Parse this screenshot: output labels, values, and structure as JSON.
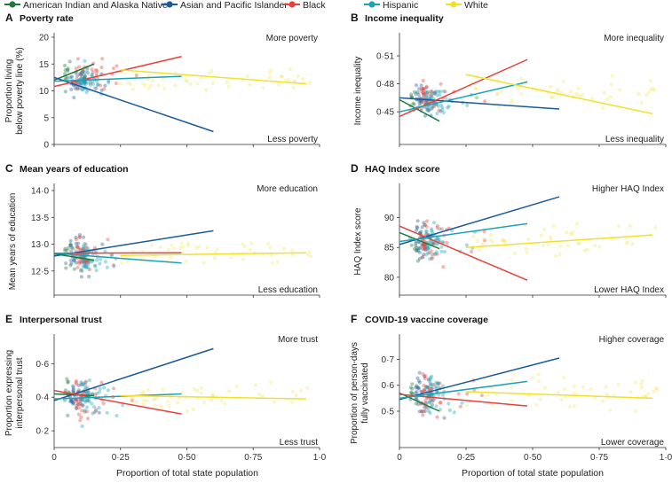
{
  "legend": [
    {
      "name": "American Indian and Alaska Native",
      "color": "#1e7a3c"
    },
    {
      "name": "Asian and Pacific Islander",
      "color": "#1a5a9a"
    },
    {
      "name": "Black",
      "color": "#e8413a"
    },
    {
      "name": "Hispanic",
      "color": "#1aa3b8"
    },
    {
      "name": "White",
      "color": "#f2e030"
    }
  ],
  "x_axis_title": "Proportion of total state population",
  "chart_data": [
    {
      "type": "scatter",
      "letter": "A",
      "title": "Poverty rate",
      "ylabel": [
        "Proportion living",
        "below poverty line (%)"
      ],
      "xlim": [
        0,
        1.0
      ],
      "ylim": [
        0,
        20
      ],
      "xticks": [
        0,
        0.25,
        0.5,
        0.75,
        1.0
      ],
      "xtick_labels": [
        "0",
        "0·25",
        "0·50",
        "0·75",
        "1·0"
      ],
      "yticks": [
        0,
        5,
        10,
        15,
        20
      ],
      "ytick_labels": [
        "0",
        "5",
        "10",
        "15",
        "20"
      ],
      "show_xticks": false,
      "annotation_top": "More poverty",
      "annotation_bottom": "Less poverty",
      "series": [
        {
          "name": "American Indian and Alaska Native",
          "line": [
            [
              0,
              12.0
            ],
            [
              0.15,
              15.0
            ]
          ],
          "center": [
            0.04,
            13.5
          ],
          "spread": [
            0.05,
            3.8
          ],
          "n": 12
        },
        {
          "name": "Asian and Pacific Islander",
          "line": [
            [
              0,
              12.5
            ],
            [
              0.6,
              2.4
            ]
          ],
          "center": [
            0.06,
            11.5
          ],
          "spread": [
            0.08,
            3.5
          ],
          "n": 30
        },
        {
          "name": "Black",
          "line": [
            [
              0,
              10.8
            ],
            [
              0.48,
              16.4
            ]
          ],
          "center": [
            0.08,
            13.0
          ],
          "spread": [
            0.12,
            3.5
          ],
          "n": 45
        },
        {
          "name": "Hispanic",
          "line": [
            [
              0,
              11.8
            ],
            [
              0.48,
              12.7
            ]
          ],
          "center": [
            0.1,
            12.0
          ],
          "spread": [
            0.1,
            3.5
          ],
          "n": 48
        },
        {
          "name": "White",
          "line": [
            [
              0.25,
              13.9
            ],
            [
              0.95,
              11.3
            ]
          ],
          "center": [
            0.65,
            12.0
          ],
          "spread": [
            0.2,
            3.0
          ],
          "n": 50
        }
      ]
    },
    {
      "type": "scatter",
      "letter": "B",
      "title": "Income inequality",
      "ylabel": [
        "Income inequality"
      ],
      "xlim": [
        0,
        1.0
      ],
      "ylim": [
        0.415,
        0.53
      ],
      "xticks": [
        0,
        0.25,
        0.5,
        0.75,
        1.0
      ],
      "xtick_labels": [
        "0",
        "0·25",
        "0·50",
        "0·75",
        "1·0"
      ],
      "yticks": [
        0.45,
        0.48,
        0.51
      ],
      "ytick_labels": [
        "0·45",
        "0·48",
        "0·51"
      ],
      "show_xticks": false,
      "annotation_top": "More inequality",
      "annotation_bottom": "Less inequality",
      "series": [
        {
          "name": "American Indian and Alaska Native",
          "line": [
            [
              0,
              0.463
            ],
            [
              0.15,
              0.44
            ]
          ],
          "center": [
            0.04,
            0.46
          ],
          "spread": [
            0.05,
            0.02
          ],
          "n": 12
        },
        {
          "name": "Asian and Pacific Islander",
          "line": [
            [
              0,
              0.465
            ],
            [
              0.6,
              0.453
            ]
          ],
          "center": [
            0.06,
            0.46
          ],
          "spread": [
            0.08,
            0.02
          ],
          "n": 30
        },
        {
          "name": "Black",
          "line": [
            [
              0,
              0.445
            ],
            [
              0.48,
              0.506
            ]
          ],
          "center": [
            0.08,
            0.465
          ],
          "spread": [
            0.12,
            0.02
          ],
          "n": 45
        },
        {
          "name": "Hispanic",
          "line": [
            [
              0,
              0.45
            ],
            [
              0.48,
              0.482
            ]
          ],
          "center": [
            0.1,
            0.462
          ],
          "spread": [
            0.1,
            0.02
          ],
          "n": 48
        },
        {
          "name": "White",
          "line": [
            [
              0.25,
              0.49
            ],
            [
              0.95,
              0.448
            ]
          ],
          "center": [
            0.6,
            0.47
          ],
          "spread": [
            0.2,
            0.022
          ],
          "n": 50
        }
      ]
    },
    {
      "type": "scatter",
      "letter": "C",
      "title": "Mean years of education",
      "ylabel": [
        "Mean years of education"
      ],
      "xlim": [
        0,
        1.0
      ],
      "ylim": [
        12.05,
        14.05
      ],
      "xticks": [
        0,
        0.25,
        0.5,
        0.75,
        1.0
      ],
      "xtick_labels": [
        "0",
        "0·25",
        "0·50",
        "0·75",
        "1·0"
      ],
      "yticks": [
        12.5,
        13.0,
        13.5,
        14.0
      ],
      "ytick_labels": [
        "12·5",
        "13·0",
        "13·5",
        "14·0"
      ],
      "show_xticks": false,
      "annotation_top": "More education",
      "annotation_bottom": "Less education",
      "series": [
        {
          "name": "American Indian and Alaska Native",
          "line": [
            [
              0,
              12.82
            ],
            [
              0.15,
              12.7
            ]
          ],
          "center": [
            0.04,
            12.8
          ],
          "spread": [
            0.05,
            0.4
          ],
          "n": 12
        },
        {
          "name": "Asian and Pacific Islander",
          "line": [
            [
              0,
              12.78
            ],
            [
              0.6,
              13.25
            ]
          ],
          "center": [
            0.06,
            12.8
          ],
          "spread": [
            0.08,
            0.45
          ],
          "n": 30
        },
        {
          "name": "Black",
          "line": [
            [
              0,
              12.83
            ],
            [
              0.48,
              12.84
            ]
          ],
          "center": [
            0.08,
            12.8
          ],
          "spread": [
            0.12,
            0.4
          ],
          "n": 45
        },
        {
          "name": "Hispanic",
          "line": [
            [
              0,
              12.83
            ],
            [
              0.48,
              12.65
            ]
          ],
          "center": [
            0.1,
            12.75
          ],
          "spread": [
            0.1,
            0.4
          ],
          "n": 48
        },
        {
          "name": "White",
          "line": [
            [
              0.25,
              12.79
            ],
            [
              0.95,
              12.84
            ]
          ],
          "center": [
            0.6,
            12.85
          ],
          "spread": [
            0.2,
            0.35
          ],
          "n": 50
        }
      ]
    },
    {
      "type": "scatter",
      "letter": "D",
      "title": "HAQ Index score",
      "ylabel": [
        "HAQ Index score"
      ],
      "xlim": [
        0,
        1.0
      ],
      "ylim": [
        77,
        95
      ],
      "xticks": [
        0,
        0.25,
        0.5,
        0.75,
        1.0
      ],
      "xtick_labels": [
        "0",
        "0·25",
        "0·50",
        "0·75",
        "1·0"
      ],
      "yticks": [
        80,
        85,
        90
      ],
      "ytick_labels": [
        "80",
        "85",
        "90"
      ],
      "show_xticks": false,
      "annotation_top": "Higher HAQ Index",
      "annotation_bottom": "Lower HAQ Index",
      "series": [
        {
          "name": "American Indian and Alaska Native",
          "line": [
            [
              0,
              87.5
            ],
            [
              0.15,
              84.8
            ]
          ],
          "center": [
            0.04,
            86.0
          ],
          "spread": [
            0.05,
            4.5
          ],
          "n": 12
        },
        {
          "name": "Asian and Pacific Islander",
          "line": [
            [
              0,
              85.5
            ],
            [
              0.6,
              93.5
            ]
          ],
          "center": [
            0.06,
            86.0
          ],
          "spread": [
            0.08,
            4.5
          ],
          "n": 30
        },
        {
          "name": "Black",
          "line": [
            [
              0,
              88.6
            ],
            [
              0.48,
              79.5
            ]
          ],
          "center": [
            0.08,
            86.0
          ],
          "spread": [
            0.12,
            4.5
          ],
          "n": 45
        },
        {
          "name": "Hispanic",
          "line": [
            [
              0,
              86.0
            ],
            [
              0.48,
              89.0
            ]
          ],
          "center": [
            0.1,
            86.5
          ],
          "spread": [
            0.1,
            4.0
          ],
          "n": 48
        },
        {
          "name": "White",
          "line": [
            [
              0.25,
              85.0
            ],
            [
              0.95,
              87.1
            ]
          ],
          "center": [
            0.6,
            86.5
          ],
          "spread": [
            0.2,
            4.0
          ],
          "n": 50
        }
      ]
    },
    {
      "type": "scatter",
      "letter": "E",
      "title": "Interpersonal trust",
      "ylabel": [
        "Proportion expressing",
        "interpersonal trust"
      ],
      "xlim": [
        0,
        1.0
      ],
      "ylim": [
        0.1,
        0.75
      ],
      "xticks": [
        0,
        0.25,
        0.5,
        0.75,
        1.0
      ],
      "xtick_labels": [
        "0",
        "0·25",
        "0·50",
        "0·75",
        "1·0"
      ],
      "yticks": [
        0.2,
        0.4,
        0.6
      ],
      "ytick_labels": [
        "0·2",
        "0·4",
        "0·6"
      ],
      "show_xticks": true,
      "annotation_top": "More trust",
      "annotation_bottom": "Less trust",
      "series": [
        {
          "name": "American Indian and Alaska Native",
          "line": [
            [
              0,
              0.42
            ],
            [
              0.15,
              0.41
            ]
          ],
          "center": [
            0.04,
            0.42
          ],
          "spread": [
            0.05,
            0.15
          ],
          "n": 12
        },
        {
          "name": "Asian and Pacific Islander",
          "line": [
            [
              0,
              0.38
            ],
            [
              0.6,
              0.69
            ]
          ],
          "center": [
            0.06,
            0.4
          ],
          "spread": [
            0.08,
            0.16
          ],
          "n": 30
        },
        {
          "name": "Black",
          "line": [
            [
              0,
              0.44
            ],
            [
              0.48,
              0.3
            ]
          ],
          "center": [
            0.08,
            0.4
          ],
          "spread": [
            0.12,
            0.16
          ],
          "n": 45
        },
        {
          "name": "Hispanic",
          "line": [
            [
              0,
              0.39
            ],
            [
              0.48,
              0.42
            ]
          ],
          "center": [
            0.1,
            0.4
          ],
          "spread": [
            0.1,
            0.15
          ],
          "n": 48
        },
        {
          "name": "White",
          "line": [
            [
              0.25,
              0.41
            ],
            [
              0.95,
              0.39
            ]
          ],
          "center": [
            0.6,
            0.4
          ],
          "spread": [
            0.2,
            0.12
          ],
          "n": 50
        }
      ]
    },
    {
      "type": "scatter",
      "letter": "F",
      "title": "COVID-19 vaccine coverage",
      "ylabel": [
        "Proportion of person-days",
        "fully vaccinated"
      ],
      "xlim": [
        0,
        1.0
      ],
      "ylim": [
        0.36,
        0.78
      ],
      "xticks": [
        0,
        0.25,
        0.5,
        0.75,
        1.0
      ],
      "xtick_labels": [
        "0",
        "0·25",
        "0·50",
        "0·75",
        "1·0"
      ],
      "yticks": [
        0.5,
        0.6,
        0.7
      ],
      "ytick_labels": [
        "0·5",
        "0·6",
        "0·7"
      ],
      "show_xticks": true,
      "annotation_top": "Higher coverage",
      "annotation_bottom": "Lower coverage",
      "series": [
        {
          "name": "American Indian and Alaska Native",
          "line": [
            [
              0,
              0.57
            ],
            [
              0.15,
              0.5
            ]
          ],
          "center": [
            0.04,
            0.56
          ],
          "spread": [
            0.05,
            0.09
          ],
          "n": 12
        },
        {
          "name": "Asian and Pacific Islander",
          "line": [
            [
              0,
              0.545
            ],
            [
              0.6,
              0.705
            ]
          ],
          "center": [
            0.06,
            0.57
          ],
          "spread": [
            0.08,
            0.1
          ],
          "n": 30
        },
        {
          "name": "Black",
          "line": [
            [
              0,
              0.565
            ],
            [
              0.48,
              0.52
            ]
          ],
          "center": [
            0.08,
            0.56
          ],
          "spread": [
            0.12,
            0.1
          ],
          "n": 45
        },
        {
          "name": "Hispanic",
          "line": [
            [
              0,
              0.55
            ],
            [
              0.48,
              0.615
            ]
          ],
          "center": [
            0.1,
            0.57
          ],
          "spread": [
            0.1,
            0.1
          ],
          "n": 48
        },
        {
          "name": "White",
          "line": [
            [
              0.25,
              0.575
            ],
            [
              0.95,
              0.55
            ]
          ],
          "center": [
            0.6,
            0.57
          ],
          "spread": [
            0.2,
            0.08
          ],
          "n": 50
        }
      ]
    }
  ]
}
